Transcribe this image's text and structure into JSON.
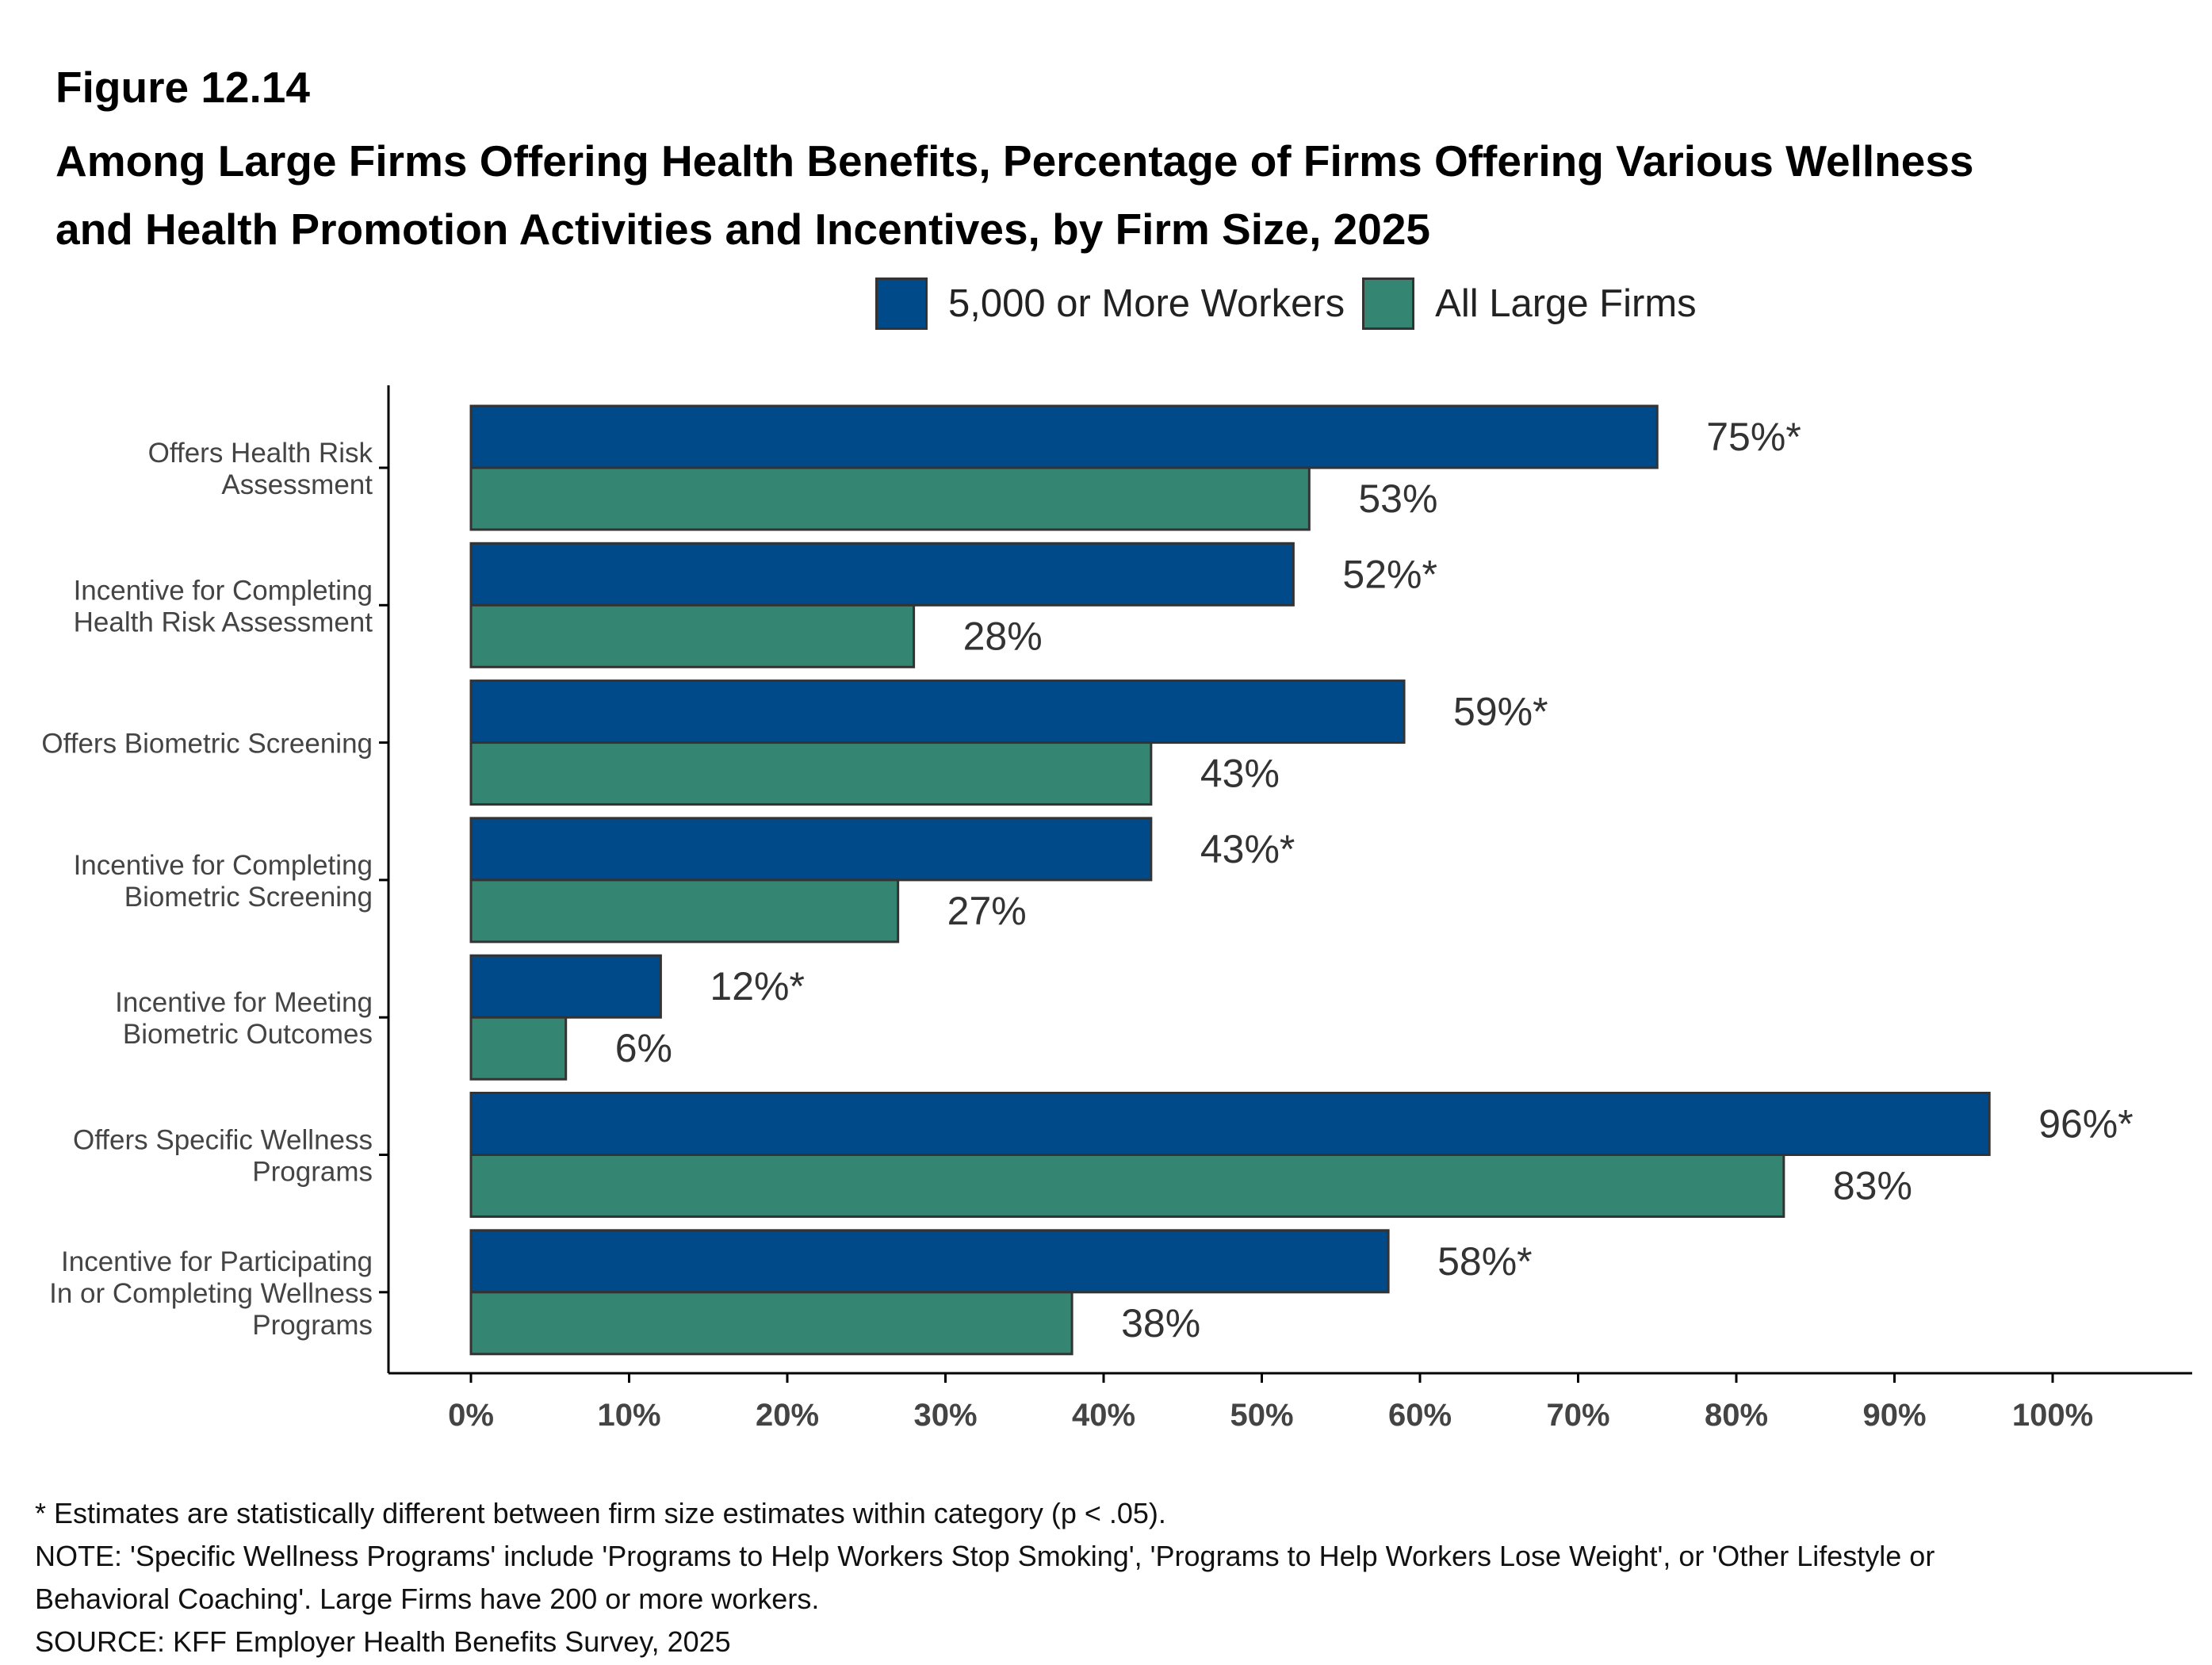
{
  "figure_label": "Figure 12.14",
  "title_line1": "Among Large Firms Offering Health Benefits, Percentage of Firms Offering Various Wellness",
  "title_line2": "and Health Promotion Activities and Incentives, by Firm Size, 2025",
  "colors": {
    "series1": "#004a8a",
    "series2": "#348672",
    "axis": "#000000",
    "bar_border": "#333333"
  },
  "chart_data": {
    "type": "bar",
    "orientation": "horizontal",
    "title": "Among Large Firms Offering Health Benefits, Percentage of Firms Offering Various Wellness and Health Promotion Activities and Incentives, by Firm Size, 2025",
    "legend_position": "top",
    "categories": [
      [
        "Offers Health Risk",
        "Assessment"
      ],
      [
        "Incentive for Completing",
        "Health Risk Assessment"
      ],
      [
        "Offers Biometric Screening"
      ],
      [
        "Incentive for Completing",
        "Biometric Screening"
      ],
      [
        "Incentive for Meeting",
        "Biometric Outcomes"
      ],
      [
        "Offers Specific Wellness",
        "Programs"
      ],
      [
        "Incentive for Participating",
        "In or Completing Wellness",
        "Programs"
      ]
    ],
    "series": [
      {
        "name": "5,000 or More Workers",
        "color": "#004a8a",
        "values": [
          75,
          52,
          59,
          43,
          12,
          96,
          58
        ],
        "labels": [
          "75%*",
          "52%*",
          "59%*",
          "43%*",
          "12%*",
          "96%*",
          "58%*"
        ]
      },
      {
        "name": "All Large Firms",
        "color": "#348672",
        "values": [
          53,
          28,
          43,
          27,
          6,
          83,
          38
        ],
        "labels": [
          "53%",
          "28%",
          "43%",
          "27%",
          "6%",
          "83%",
          "38%"
        ]
      }
    ],
    "xlim": [
      0,
      100
    ],
    "xticks": [
      "0%",
      "10%",
      "20%",
      "30%",
      "40%",
      "50%",
      "60%",
      "70%",
      "80%",
      "90%",
      "100%"
    ],
    "grid": false
  },
  "footnotes": [
    "* Estimates are statistically different between firm size estimates within category (p < .05).",
    "NOTE: 'Specific Wellness Programs' include 'Programs to Help Workers Stop Smoking', 'Programs to Help Workers Lose Weight', or 'Other Lifestyle or",
    "Behavioral Coaching'. Large Firms have 200 or more workers.",
    "SOURCE: KFF Employer Health Benefits Survey, 2025"
  ]
}
